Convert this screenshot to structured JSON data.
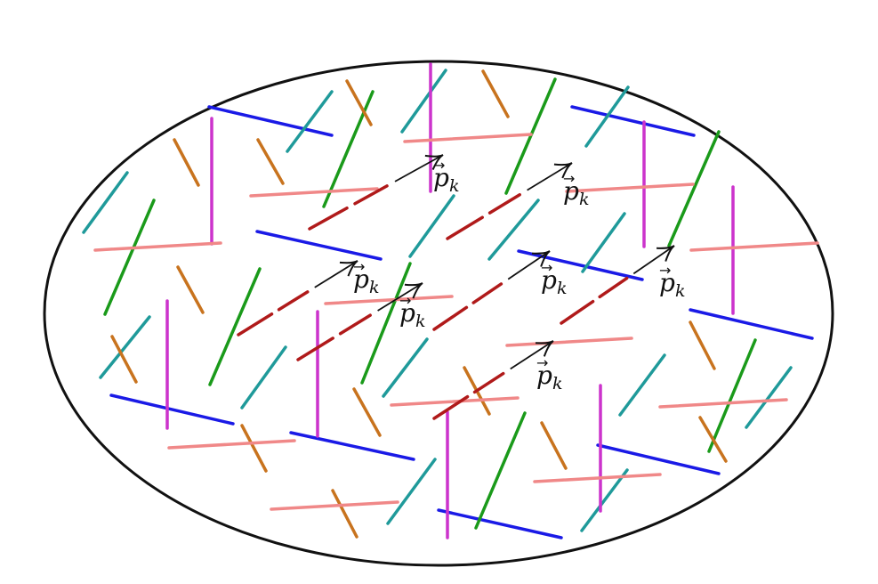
{
  "diagram": {
    "colors": {
      "outline": "#111111",
      "blue": "#1a1ae6",
      "green": "#1a9a1a",
      "teal": "#1f9a9a",
      "orange": "#c8731e",
      "magenta": "#cc33cc",
      "pink": "#f08888",
      "darkred": "#b01a1a",
      "arrow": "#111111"
    },
    "momentum_labels": [
      {
        "base": "p",
        "vector_mark": "→",
        "subscript": "k"
      },
      {
        "base": "p",
        "vector_mark": "→",
        "subscript": "k"
      },
      {
        "base": "p",
        "vector_mark": "→",
        "subscript": "k"
      },
      {
        "base": "p",
        "vector_mark": "→",
        "subscript": "k"
      },
      {
        "base": "p",
        "vector_mark": "→",
        "subscript": "k"
      },
      {
        "base": "p",
        "vector_mark": "→",
        "subscript": "k"
      }
    ]
  }
}
